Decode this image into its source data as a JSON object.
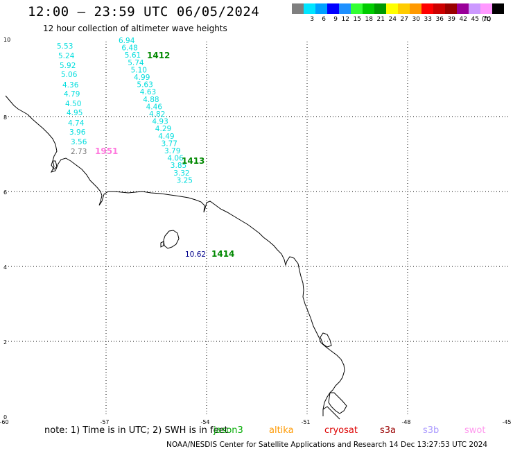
{
  "title": "12:00 – 23:59 UTC 06/05/2024",
  "subtitle": "12 hour collection of altimeter wave heights",
  "legend": {
    "swatches": [
      {
        "color": "#7f7f7f",
        "label": ""
      },
      {
        "color": "#00e5ff",
        "label": "3"
      },
      {
        "color": "#00a0ff",
        "label": "6"
      },
      {
        "color": "#0000ff",
        "label": "9"
      },
      {
        "color": "#1e90ff",
        "label": "12"
      },
      {
        "color": "#33ff33",
        "label": "15"
      },
      {
        "color": "#00cc00",
        "label": "18"
      },
      {
        "color": "#009900",
        "label": "21"
      },
      {
        "color": "#ffff00",
        "label": "24"
      },
      {
        "color": "#ffcc00",
        "label": "27"
      },
      {
        "color": "#ff9900",
        "label": "30"
      },
      {
        "color": "#ff0000",
        "label": "33"
      },
      {
        "color": "#cc0000",
        "label": "36"
      },
      {
        "color": "#990000",
        "label": "39"
      },
      {
        "color": "#990099",
        "label": "42"
      },
      {
        "color": "#cc99ff",
        "label": "45"
      },
      {
        "color": "#ff99ff",
        "label": "70"
      },
      {
        "color": "#000000",
        "label": ""
      }
    ],
    "unit": "(ft)"
  },
  "axes": {
    "lon_labels": [
      "-60",
      "-57",
      "-54",
      "-51",
      "-48",
      "-45"
    ],
    "lat_labels": [
      "10",
      "8",
      "6",
      "4",
      "2",
      "0"
    ]
  },
  "tracks": {
    "left_values": [
      "5.53",
      "5.24",
      "5.92",
      "5.06",
      "4.36",
      "4.79",
      "4.50",
      "4.95",
      "4.74",
      "3.96",
      "3.56"
    ],
    "left_gray_value": "2.73",
    "left_pass_id": "1951",
    "right_values": [
      "6.94",
      "6.48",
      "5.61",
      "5.74",
      "5.10",
      "4.99",
      "5.63",
      "4.63",
      "4.88",
      "4.46",
      "4.82",
      "4.93",
      "4.29",
      "4.49",
      "3.77",
      "3.79",
      "4.06",
      "3.85",
      "3.32",
      "3.25"
    ],
    "right_pass_id_top": "1412",
    "right_pass_id_bottom": "1413",
    "island_value": "10.62",
    "island_pass_id": "1414"
  },
  "note": "note: 1) Time is in UTC; 2) SWH is in feet",
  "satellites": [
    {
      "name": "jason3",
      "color": "#00aa00"
    },
    {
      "name": "altika",
      "color": "#ff9900"
    },
    {
      "name": "cryosat",
      "color": "#dd0000"
    },
    {
      "name": "s3a",
      "color": "#990000"
    },
    {
      "name": "s3b",
      "color": "#aa99ff"
    },
    {
      "name": "swot",
      "color": "#ff99ee"
    }
  ],
  "footer": "NOAA/NESDIS Center for Satellite Applications and Research   14 Dec 13:27:53 UTC 2024"
}
